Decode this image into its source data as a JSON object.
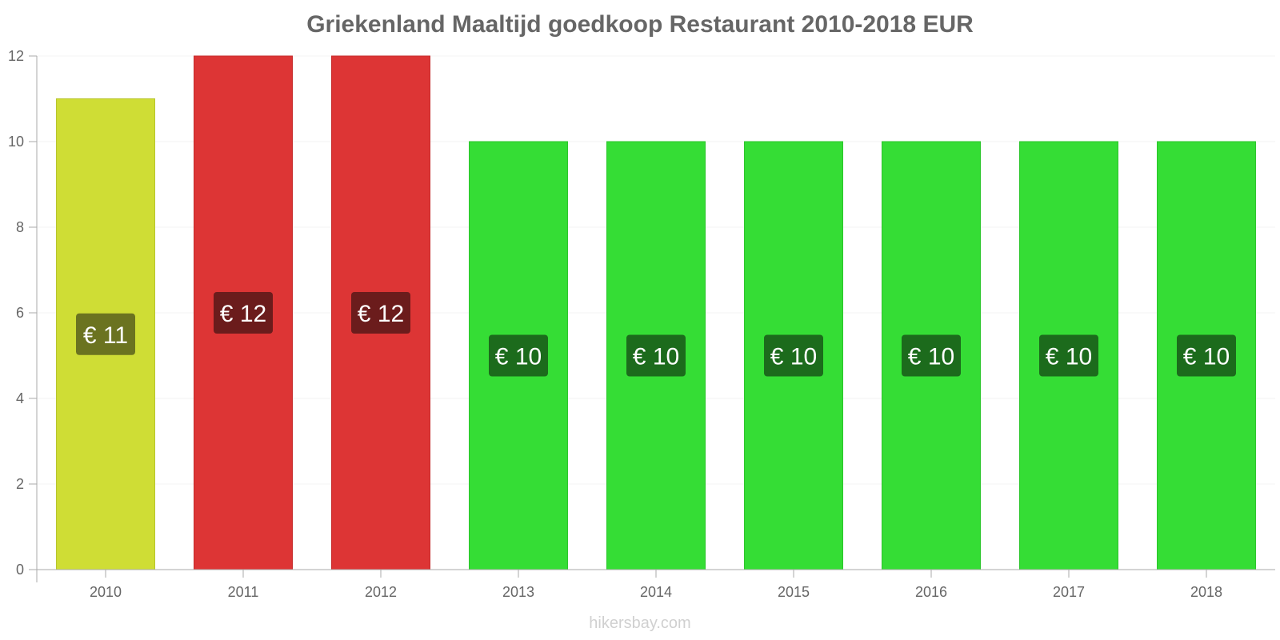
{
  "chart_data": {
    "type": "bar",
    "title": "Griekenland Maaltijd goedkoop Restaurant 2010-2018 EUR",
    "xlabel": "",
    "ylabel": "",
    "categories": [
      "2010",
      "2011",
      "2012",
      "2013",
      "2014",
      "2015",
      "2016",
      "2017",
      "2018"
    ],
    "values": [
      11,
      12,
      12,
      10,
      10,
      10,
      10,
      10,
      10
    ],
    "data_labels": [
      "€ 11",
      "€ 12",
      "€ 12",
      "€ 10",
      "€ 10",
      "€ 10",
      "€ 10",
      "€ 10",
      "€ 10"
    ],
    "ylim": [
      0,
      12
    ],
    "yticks": [
      0,
      2,
      4,
      6,
      8,
      10,
      12
    ],
    "grid": true,
    "legend": "none",
    "colors": {
      "bars": [
        "#cfdd35",
        "#dd3535",
        "#dd3535",
        "#35dd35",
        "#35dd35",
        "#35dd35",
        "#35dd35",
        "#35dd35",
        "#35dd35"
      ],
      "bar_borders": [
        "#b8c52a",
        "#c62a2a",
        "#c62a2a",
        "#2ac62a",
        "#2ac62a",
        "#2ac62a",
        "#2ac62a",
        "#2ac62a",
        "#2ac62a"
      ],
      "label_boxes": [
        "#6b7320",
        "#6b1c1c",
        "#6b1c1c",
        "#1c6b1c",
        "#1c6b1c",
        "#1c6b1c",
        "#1c6b1c",
        "#1c6b1c",
        "#1c6b1c"
      ]
    }
  },
  "watermark": "hikersbay.com"
}
